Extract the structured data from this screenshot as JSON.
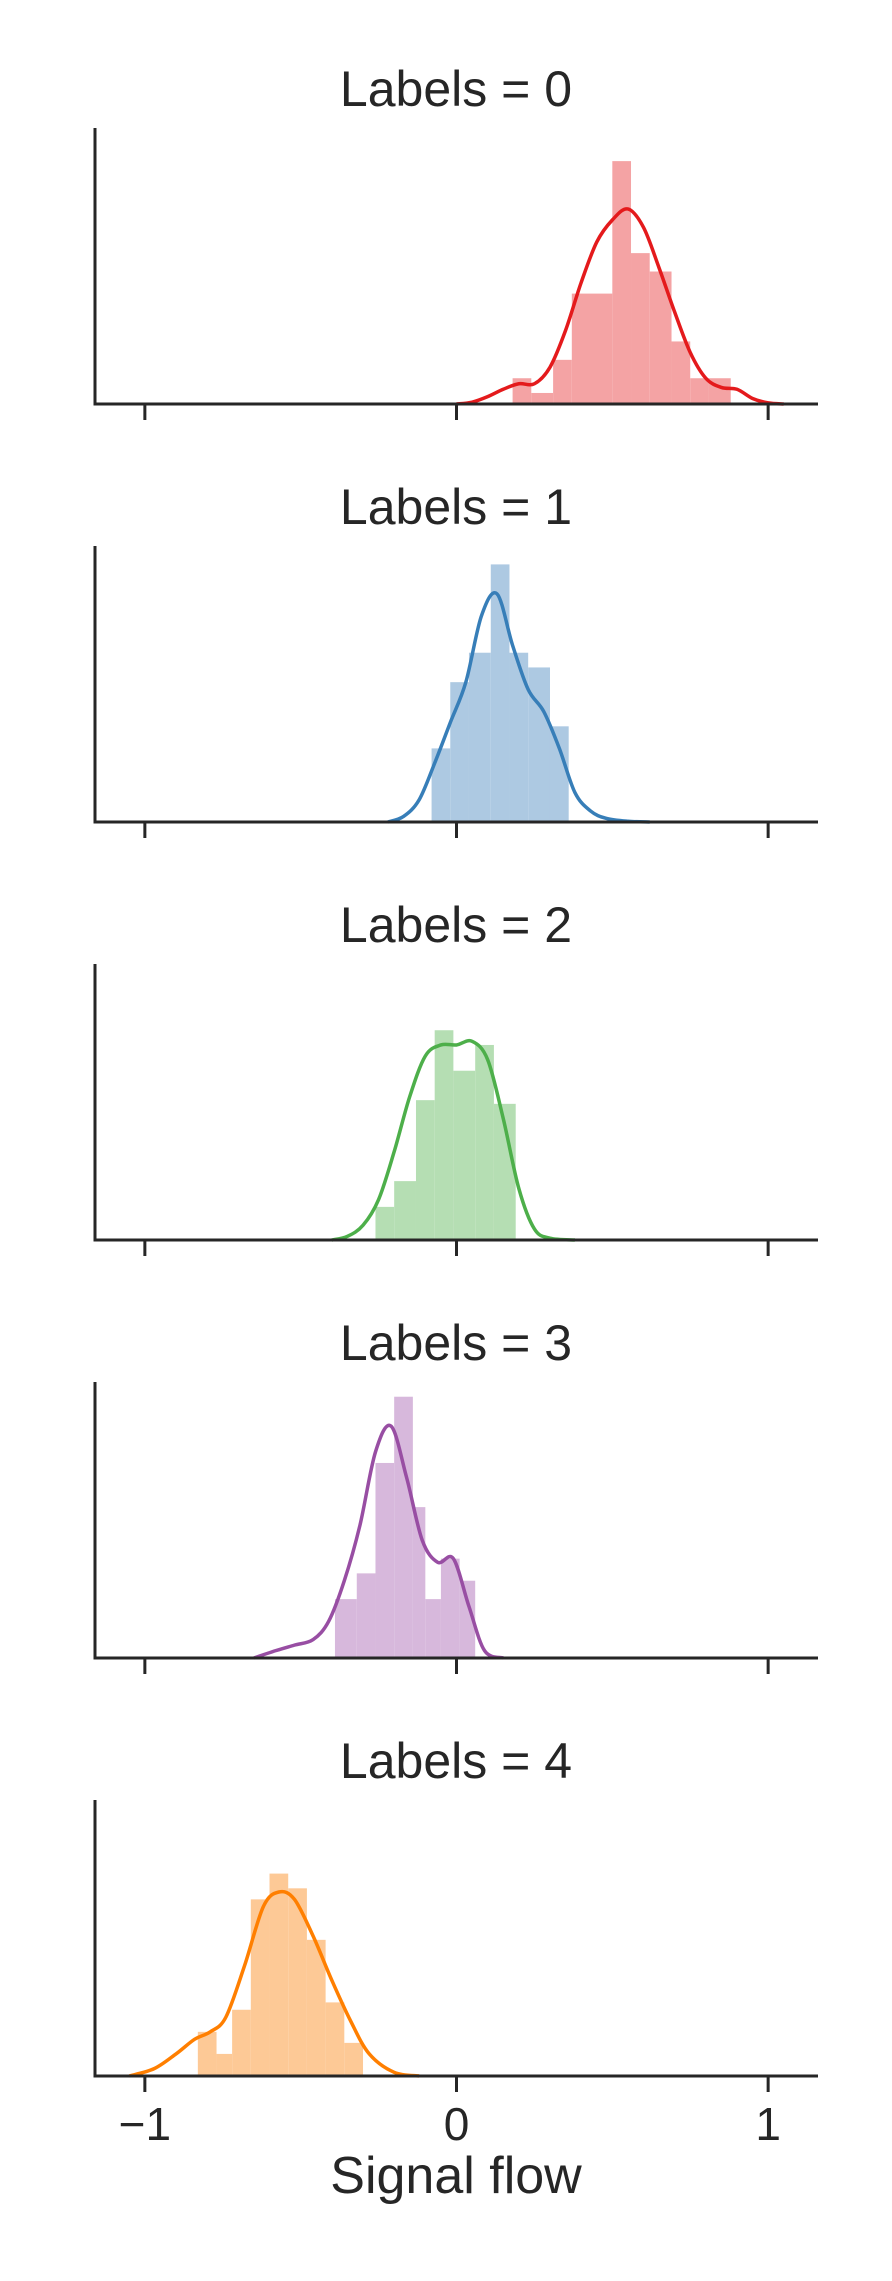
{
  "chart_data": {
    "type": "histogram",
    "xlabel": "Signal flow",
    "xlim": [
      -1.16,
      1.16
    ],
    "xticks": [
      -1,
      0,
      1
    ],
    "xtick_labels": [
      "−1",
      "0",
      "1"
    ],
    "grid": false,
    "facet_label_prefix": "Labels = ",
    "panels": [
      {
        "title": "Labels = 0",
        "color": "#e41a1c",
        "hist_color": "#f4a3a4",
        "bins": [
          {
            "x0": 0.18,
            "x1": 0.24,
            "density": 0.7
          },
          {
            "x0": 0.24,
            "x1": 0.31,
            "density": 0.3
          },
          {
            "x0": 0.31,
            "x1": 0.37,
            "density": 1.2
          },
          {
            "x0": 0.37,
            "x1": 0.43,
            "density": 3.0
          },
          {
            "x0": 0.43,
            "x1": 0.5,
            "density": 3.0
          },
          {
            "x0": 0.5,
            "x1": 0.56,
            "density": 6.6
          },
          {
            "x0": 0.56,
            "x1": 0.62,
            "density": 4.1
          },
          {
            "x0": 0.62,
            "x1": 0.69,
            "density": 3.6
          },
          {
            "x0": 0.69,
            "x1": 0.75,
            "density": 1.7
          },
          {
            "x0": 0.75,
            "x1": 0.81,
            "density": 0.7
          },
          {
            "x0": 0.81,
            "x1": 0.88,
            "density": 0.7
          }
        ],
        "kde": {
          "x": [
            0.0,
            0.05,
            0.1,
            0.15,
            0.2,
            0.25,
            0.3,
            0.35,
            0.4,
            0.45,
            0.5,
            0.55,
            0.6,
            0.65,
            0.7,
            0.75,
            0.8,
            0.85,
            0.9,
            0.95,
            1.0,
            1.05
          ],
          "y": [
            0.0,
            0.05,
            0.2,
            0.4,
            0.55,
            0.55,
            1.0,
            2.0,
            3.3,
            4.4,
            5.0,
            5.3,
            4.8,
            3.7,
            2.5,
            1.4,
            0.7,
            0.45,
            0.4,
            0.15,
            0.03,
            0.0
          ]
        }
      },
      {
        "title": "Labels = 1",
        "color": "#377eb8",
        "hist_color": "#adc9e2",
        "bins": [
          {
            "x0": -0.08,
            "x1": -0.02,
            "density": 2.0
          },
          {
            "x0": -0.02,
            "x1": 0.04,
            "density": 3.8
          },
          {
            "x0": 0.04,
            "x1": 0.11,
            "density": 4.6
          },
          {
            "x0": 0.11,
            "x1": 0.17,
            "density": 7.0
          },
          {
            "x0": 0.17,
            "x1": 0.23,
            "density": 4.6
          },
          {
            "x0": 0.23,
            "x1": 0.3,
            "density": 4.2
          },
          {
            "x0": 0.3,
            "x1": 0.36,
            "density": 2.6
          }
        ],
        "kde": {
          "x": [
            -0.22,
            -0.17,
            -0.12,
            -0.07,
            -0.02,
            0.03,
            0.08,
            0.13,
            0.18,
            0.23,
            0.28,
            0.33,
            0.38,
            0.43,
            0.48,
            0.55,
            0.62
          ],
          "y": [
            0.0,
            0.15,
            0.6,
            1.6,
            2.7,
            3.8,
            5.6,
            6.2,
            4.8,
            3.6,
            3.0,
            2.0,
            0.8,
            0.3,
            0.1,
            0.02,
            0.0
          ]
        }
      },
      {
        "title": "Labels = 2",
        "color": "#4daf4a",
        "hist_color": "#b5deb3",
        "bins": [
          {
            "x0": -0.26,
            "x1": -0.2,
            "density": 0.9
          },
          {
            "x0": -0.2,
            "x1": -0.13,
            "density": 1.6
          },
          {
            "x0": -0.13,
            "x1": -0.07,
            "density": 3.8
          },
          {
            "x0": -0.07,
            "x1": -0.01,
            "density": 5.7
          },
          {
            "x0": -0.01,
            "x1": 0.06,
            "density": 4.6
          },
          {
            "x0": 0.06,
            "x1": 0.12,
            "density": 5.3
          },
          {
            "x0": 0.12,
            "x1": 0.19,
            "density": 3.7
          }
        ],
        "kde": {
          "x": [
            -0.4,
            -0.35,
            -0.3,
            -0.25,
            -0.2,
            -0.15,
            -0.1,
            -0.05,
            0.0,
            0.05,
            0.1,
            0.15,
            0.2,
            0.25,
            0.3,
            0.38
          ],
          "y": [
            0.0,
            0.1,
            0.4,
            1.1,
            2.4,
            3.9,
            5.0,
            5.3,
            5.3,
            5.4,
            4.9,
            3.3,
            1.4,
            0.3,
            0.05,
            0.0
          ]
        }
      },
      {
        "title": "Labels = 3",
        "color": "#984ea3",
        "hist_color": "#d7b8dc",
        "bins": [
          {
            "x0": -0.39,
            "x1": -0.32,
            "density": 1.6
          },
          {
            "x0": -0.32,
            "x1": -0.26,
            "density": 2.3
          },
          {
            "x0": -0.26,
            "x1": -0.2,
            "density": 5.3
          },
          {
            "x0": -0.2,
            "x1": -0.14,
            "density": 7.1
          },
          {
            "x0": -0.14,
            "x1": -0.1,
            "density": 4.1
          },
          {
            "x0": -0.1,
            "x1": -0.05,
            "density": 1.6
          },
          {
            "x0": -0.05,
            "x1": 0.01,
            "density": 2.7
          },
          {
            "x0": 0.01,
            "x1": 0.06,
            "density": 2.1
          }
        ],
        "kde": {
          "x": [
            -0.65,
            -0.58,
            -0.52,
            -0.46,
            -0.41,
            -0.36,
            -0.31,
            -0.26,
            -0.21,
            -0.16,
            -0.11,
            -0.06,
            -0.01,
            0.04,
            0.09,
            0.15
          ],
          "y": [
            0.0,
            0.2,
            0.35,
            0.5,
            1.0,
            2.1,
            3.6,
            5.6,
            6.3,
            4.9,
            3.2,
            2.6,
            2.7,
            1.4,
            0.2,
            0.0
          ]
        }
      },
      {
        "title": "Labels = 4",
        "color": "#ff7f00",
        "hist_color": "#fdc996",
        "bins": [
          {
            "x0": -0.83,
            "x1": -0.77,
            "density": 1.2
          },
          {
            "x0": -0.77,
            "x1": -0.72,
            "density": 0.6
          },
          {
            "x0": -0.72,
            "x1": -0.66,
            "density": 1.8
          },
          {
            "x0": -0.66,
            "x1": -0.6,
            "density": 4.8
          },
          {
            "x0": -0.6,
            "x1": -0.54,
            "density": 5.5
          },
          {
            "x0": -0.54,
            "x1": -0.48,
            "density": 5.1
          },
          {
            "x0": -0.48,
            "x1": -0.42,
            "density": 3.7
          },
          {
            "x0": -0.42,
            "x1": -0.36,
            "density": 2.0
          },
          {
            "x0": -0.36,
            "x1": -0.3,
            "density": 0.9
          }
        ],
        "kde": {
          "x": [
            -1.05,
            -0.97,
            -0.9,
            -0.84,
            -0.79,
            -0.74,
            -0.68,
            -0.62,
            -0.57,
            -0.52,
            -0.46,
            -0.4,
            -0.34,
            -0.28,
            -0.2,
            -0.12
          ],
          "y": [
            0.0,
            0.2,
            0.6,
            1.0,
            1.2,
            1.6,
            3.0,
            4.6,
            5.0,
            4.8,
            3.8,
            2.6,
            1.5,
            0.6,
            0.1,
            0.0
          ]
        }
      }
    ]
  }
}
